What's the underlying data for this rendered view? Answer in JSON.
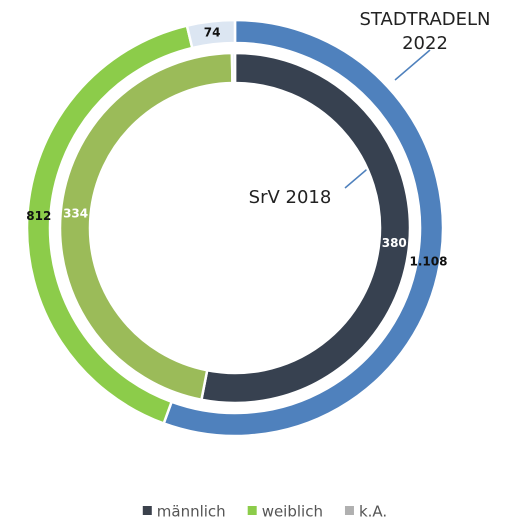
{
  "chart_data": {
    "type": "donut",
    "categories": [
      "männlich",
      "weiblich",
      "k.A."
    ],
    "legend_colors": [
      "#3b414c",
      "#8ccc4a",
      "#b0b0b0"
    ],
    "series": [
      {
        "name": "STADTRADELN 2022",
        "values": [
          1108,
          812,
          74
        ],
        "value_labels": [
          "1.108",
          "812",
          "74"
        ],
        "colors": [
          "#4f81bd",
          "#8ccc4a",
          "#dce6f2"
        ]
      },
      {
        "name": "SrV 2018",
        "values": [
          380,
          334,
          2
        ],
        "colors": [
          "#374150",
          "#9bbb59",
          "#dce6f2"
        ]
      }
    ],
    "legend": "bottom"
  }
}
